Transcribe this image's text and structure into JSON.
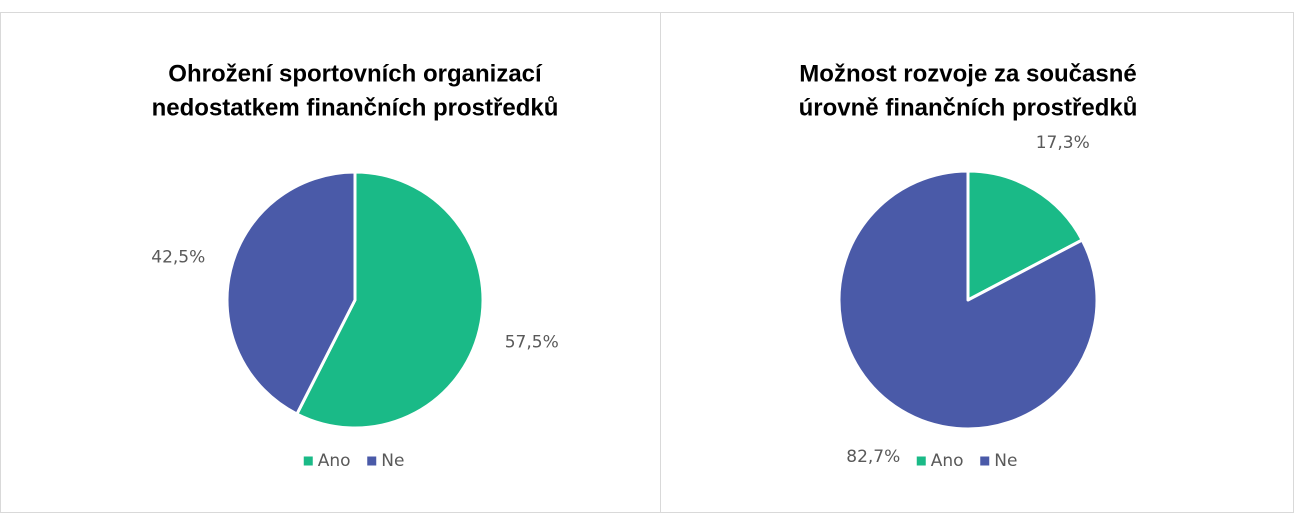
{
  "chart_data": [
    {
      "type": "pie",
      "title": [
        "Ohrožení sportovních organizací",
        "nedostatkem finančních prostředků"
      ],
      "categories": [
        "Ano",
        "Ne"
      ],
      "values": [
        57.5,
        42.5
      ],
      "value_labels": [
        "57,5%",
        "42,5%"
      ],
      "colors": [
        "#1aba87",
        "#4a5aa8"
      ],
      "legend": "bottom"
    },
    {
      "type": "pie",
      "title": [
        "Možnost rozvoje za současné",
        "úrovně finančních prostředků"
      ],
      "categories": [
        "Ano",
        "Ne"
      ],
      "values": [
        17.3,
        82.7
      ],
      "value_labels": [
        "17,3%",
        "82,7%"
      ],
      "colors": [
        "#1aba87",
        "#4a5aa8"
      ],
      "legend": "bottom"
    }
  ]
}
